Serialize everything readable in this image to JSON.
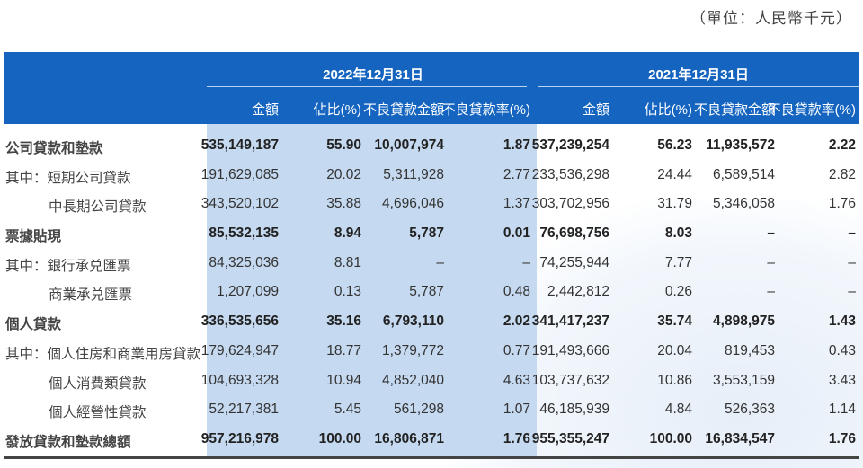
{
  "unit": "（單位：人民幣千元）",
  "periods": [
    "2022年12月31日",
    "2021年12月31日"
  ],
  "columns": [
    "金額",
    "佔比(%)",
    "不良貸款金額",
    "不良貸款率(%)"
  ],
  "rows": [
    {
      "label": "公司貸款和墊款",
      "bold": true,
      "v": [
        "535,149,187",
        "55.90",
        "10,007,974",
        "1.87",
        "537,239,254",
        "56.23",
        "11,935,572",
        "2.22"
      ]
    },
    {
      "label": "其中：短期公司貸款",
      "bold": false,
      "v": [
        "191,629,085",
        "20.02",
        "5,311,928",
        "2.77",
        "233,536,298",
        "24.44",
        "6,589,514",
        "2.82"
      ]
    },
    {
      "label": "中長期公司貸款",
      "bold": false,
      "indent": true,
      "v": [
        "343,520,102",
        "35.88",
        "4,696,046",
        "1.37",
        "303,702,956",
        "31.79",
        "5,346,058",
        "1.76"
      ]
    },
    {
      "label": "票據貼現",
      "bold": true,
      "v": [
        "85,532,135",
        "8.94",
        "5,787",
        "0.01",
        "76,698,756",
        "8.03",
        "–",
        "–"
      ]
    },
    {
      "label": "其中：銀行承兑匯票",
      "bold": false,
      "v": [
        "84,325,036",
        "8.81",
        "–",
        "–",
        "74,255,944",
        "7.77",
        "–",
        "–"
      ]
    },
    {
      "label": "商業承兑匯票",
      "bold": false,
      "indent": true,
      "v": [
        "1,207,099",
        "0.13",
        "5,787",
        "0.48",
        "2,442,812",
        "0.26",
        "–",
        "–"
      ]
    },
    {
      "label": "個人貸款",
      "bold": true,
      "v": [
        "336,535,656",
        "35.16",
        "6,793,110",
        "2.02",
        "341,417,237",
        "35.74",
        "4,898,975",
        "1.43"
      ]
    },
    {
      "label": "其中：個人住房和商業用房貸款",
      "bold": false,
      "v": [
        "179,624,947",
        "18.77",
        "1,379,772",
        "0.77",
        "191,493,666",
        "20.04",
        "819,453",
        "0.43"
      ]
    },
    {
      "label": "個人消費類貸款",
      "bold": false,
      "indent": true,
      "v": [
        "104,693,328",
        "10.94",
        "4,852,040",
        "4.63",
        "103,737,632",
        "10.86",
        "3,553,159",
        "3.43"
      ]
    },
    {
      "label": "個人經營性貸款",
      "bold": false,
      "indent": true,
      "v": [
        "52,217,381",
        "5.45",
        "561,298",
        "1.07",
        "46,185,939",
        "4.84",
        "526,363",
        "1.14"
      ]
    },
    {
      "label": "發放貸款和墊款總額",
      "bold": true,
      "v": [
        "957,216,978",
        "100.00",
        "16,806,871",
        "1.76",
        "955,355,247",
        "100.00",
        "16,834,547",
        "1.76"
      ]
    }
  ],
  "colors": {
    "header": "#1565c0",
    "highlight": "#c5d9f0"
  }
}
